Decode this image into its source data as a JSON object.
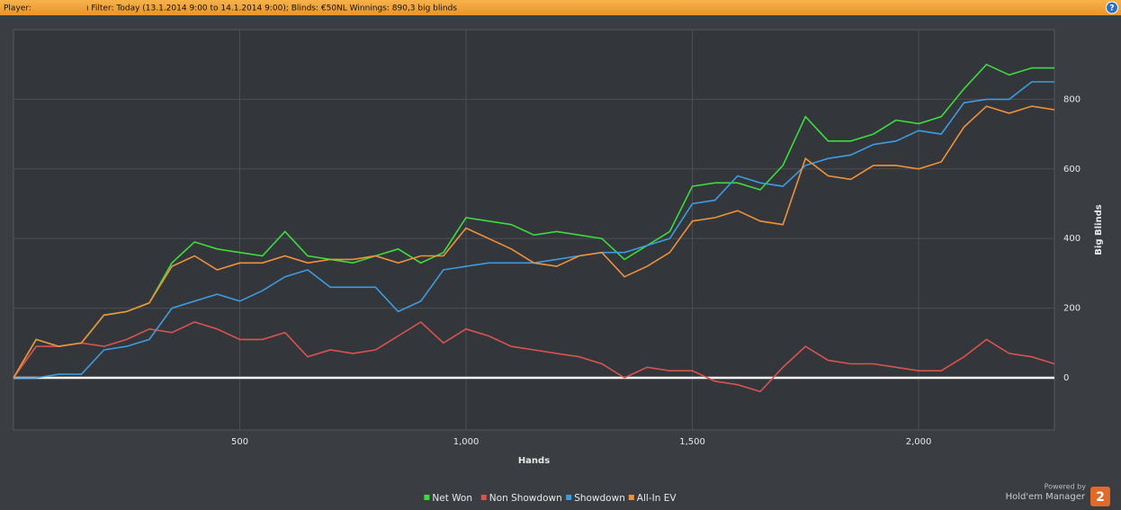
{
  "header": {
    "player": "Player:",
    "filter": "ı Filter: Today (13.1.2014 9:00 to 14.1.2014 9:00); Blinds: €50NL Winnings: 890,3 big blinds",
    "help": "?"
  },
  "branding": {
    "powered_by": "Powered by",
    "product": "Hold'em Manager",
    "badge": "2"
  },
  "chart_data": {
    "type": "line",
    "x_label": "Hands",
    "y_label": "Big Blinds",
    "x": [
      0,
      50,
      100,
      150,
      200,
      250,
      300,
      350,
      400,
      450,
      500,
      550,
      600,
      650,
      700,
      750,
      800,
      850,
      900,
      950,
      1000,
      1050,
      1100,
      1150,
      1200,
      1250,
      1300,
      1350,
      1400,
      1450,
      1500,
      1550,
      1600,
      1650,
      1700,
      1750,
      1800,
      1850,
      1900,
      1950,
      2000,
      2050,
      2100,
      2150,
      2200,
      2250,
      2300
    ],
    "series": [
      {
        "name": "Net Won",
        "color": "#3ddc3d",
        "values": [
          0,
          110,
          90,
          100,
          180,
          190,
          215,
          330,
          390,
          370,
          360,
          350,
          420,
          350,
          340,
          330,
          350,
          370,
          330,
          360,
          460,
          450,
          440,
          410,
          420,
          410,
          400,
          340,
          380,
          420,
          550,
          560,
          560,
          540,
          610,
          750,
          680,
          680,
          700,
          740,
          730,
          750,
          830,
          900,
          870,
          890,
          890
        ]
      },
      {
        "name": "Non Showdown",
        "color": "#d9534f",
        "values": [
          0,
          90,
          90,
          100,
          90,
          110,
          140,
          130,
          160,
          140,
          110,
          110,
          130,
          60,
          80,
          70,
          80,
          120,
          160,
          100,
          140,
          120,
          90,
          80,
          70,
          60,
          40,
          0,
          30,
          20,
          20,
          -10,
          -20,
          -40,
          30,
          90,
          50,
          40,
          40,
          30,
          20,
          20,
          60,
          110,
          70,
          60,
          40
        ]
      },
      {
        "name": "Showdown",
        "color": "#3d9be0",
        "values": [
          0,
          0,
          10,
          10,
          80,
          90,
          110,
          200,
          220,
          240,
          220,
          250,
          290,
          310,
          260,
          260,
          260,
          190,
          220,
          310,
          320,
          330,
          330,
          330,
          340,
          350,
          360,
          360,
          380,
          400,
          500,
          510,
          580,
          560,
          550,
          610,
          630,
          640,
          670,
          680,
          710,
          700,
          790,
          800,
          800,
          850,
          850
        ]
      },
      {
        "name": "All-In EV",
        "color": "#f0913a",
        "values": [
          0,
          110,
          90,
          100,
          180,
          190,
          215,
          320,
          350,
          310,
          330,
          330,
          350,
          330,
          340,
          340,
          350,
          330,
          350,
          350,
          430,
          400,
          370,
          330,
          320,
          350,
          360,
          290,
          320,
          360,
          450,
          460,
          480,
          450,
          440,
          630,
          580,
          570,
          610,
          610,
          600,
          620,
          720,
          780,
          760,
          780,
          770
        ]
      }
    ],
    "xlim": [
      0,
      2300
    ],
    "ylim": [
      -150,
      1000
    ],
    "xticks": [
      500,
      {
        "value": 1000,
        "label": "1,000"
      },
      {
        "value": 1500,
        "label": "1,500"
      },
      {
        "value": 2000,
        "label": "2,000"
      }
    ],
    "yticks": [
      0,
      200,
      400,
      600,
      800
    ],
    "grid": true,
    "legend": "bottom"
  }
}
